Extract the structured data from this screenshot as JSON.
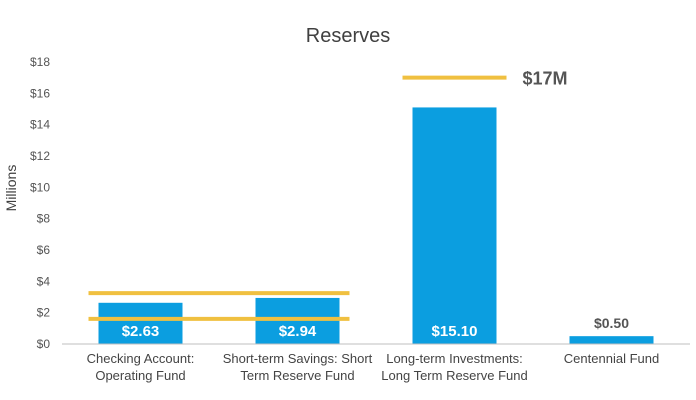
{
  "chart_data": {
    "type": "bar",
    "title": "Reserves",
    "ylabel": "Millions",
    "xlabel": "",
    "categories": [
      [
        "Checking Account:",
        "Operating Fund"
      ],
      [
        "Short-term Savings: Short",
        "Term Reserve Fund"
      ],
      [
        "Long-term Investments:",
        "Long Term Reserve Fund"
      ],
      [
        "Centennial Fund"
      ]
    ],
    "values": [
      2.63,
      2.94,
      15.1,
      0.5
    ],
    "data_labels": [
      "$2.63",
      "$2.94",
      "$15.10",
      "$0.50"
    ],
    "ylim": [
      0,
      18
    ],
    "y_ticks": [
      0,
      2,
      4,
      6,
      8,
      10,
      12,
      14,
      16,
      18
    ],
    "y_tick_labels": [
      "$0",
      "$2",
      "$4",
      "$6",
      "$8",
      "$10",
      "$12",
      "$14",
      "$16",
      "$18"
    ],
    "targets": [
      {
        "categories": [
          0,
          1
        ],
        "value": 3.25
      },
      {
        "categories": [
          0,
          1
        ],
        "value": 1.6
      },
      {
        "categories": [
          2
        ],
        "value": 17,
        "label": "$17M"
      }
    ],
    "grid": false,
    "legend": "none",
    "colors": {
      "bar": "#0b9ee0",
      "target": "#f0c040",
      "axis": "#bfbfbf"
    }
  }
}
